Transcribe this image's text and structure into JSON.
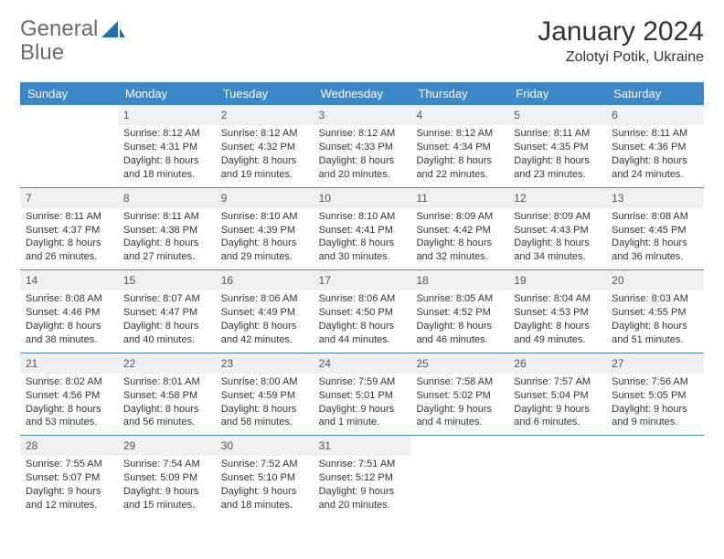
{
  "brand": {
    "part1": "General",
    "part2": "Blue",
    "text_color": "#6b6b6b",
    "accent": "#1f6fb2"
  },
  "title": "January 2024",
  "location": "Zolotyi Potik, Ukraine",
  "colors": {
    "header_bg": "#3b87c8",
    "header_text": "#ffffff",
    "daynum_bg": "#eef0f2",
    "daynum_text": "#555555",
    "rule": "#3b87c8",
    "body_text": "#333333",
    "page_bg": "#ffffff"
  },
  "fonts": {
    "title_size": 30,
    "location_size": 16,
    "dayhead_size": 13,
    "daynum_size": 12,
    "body_size": 11
  },
  "day_names": [
    "Sunday",
    "Monday",
    "Tuesday",
    "Wednesday",
    "Thursday",
    "Friday",
    "Saturday"
  ],
  "weeks": [
    [
      null,
      {
        "n": "1",
        "sunrise": "Sunrise: 8:12 AM",
        "sunset": "Sunset: 4:31 PM",
        "daylight": "Daylight: 8 hours and 18 minutes."
      },
      {
        "n": "2",
        "sunrise": "Sunrise: 8:12 AM",
        "sunset": "Sunset: 4:32 PM",
        "daylight": "Daylight: 8 hours and 19 minutes."
      },
      {
        "n": "3",
        "sunrise": "Sunrise: 8:12 AM",
        "sunset": "Sunset: 4:33 PM",
        "daylight": "Daylight: 8 hours and 20 minutes."
      },
      {
        "n": "4",
        "sunrise": "Sunrise: 8:12 AM",
        "sunset": "Sunset: 4:34 PM",
        "daylight": "Daylight: 8 hours and 22 minutes."
      },
      {
        "n": "5",
        "sunrise": "Sunrise: 8:11 AM",
        "sunset": "Sunset: 4:35 PM",
        "daylight": "Daylight: 8 hours and 23 minutes."
      },
      {
        "n": "6",
        "sunrise": "Sunrise: 8:11 AM",
        "sunset": "Sunset: 4:36 PM",
        "daylight": "Daylight: 8 hours and 24 minutes."
      }
    ],
    [
      {
        "n": "7",
        "sunrise": "Sunrise: 8:11 AM",
        "sunset": "Sunset: 4:37 PM",
        "daylight": "Daylight: 8 hours and 26 minutes."
      },
      {
        "n": "8",
        "sunrise": "Sunrise: 8:11 AM",
        "sunset": "Sunset: 4:38 PM",
        "daylight": "Daylight: 8 hours and 27 minutes."
      },
      {
        "n": "9",
        "sunrise": "Sunrise: 8:10 AM",
        "sunset": "Sunset: 4:39 PM",
        "daylight": "Daylight: 8 hours and 29 minutes."
      },
      {
        "n": "10",
        "sunrise": "Sunrise: 8:10 AM",
        "sunset": "Sunset: 4:41 PM",
        "daylight": "Daylight: 8 hours and 30 minutes."
      },
      {
        "n": "11",
        "sunrise": "Sunrise: 8:09 AM",
        "sunset": "Sunset: 4:42 PM",
        "daylight": "Daylight: 8 hours and 32 minutes."
      },
      {
        "n": "12",
        "sunrise": "Sunrise: 8:09 AM",
        "sunset": "Sunset: 4:43 PM",
        "daylight": "Daylight: 8 hours and 34 minutes."
      },
      {
        "n": "13",
        "sunrise": "Sunrise: 8:08 AM",
        "sunset": "Sunset: 4:45 PM",
        "daylight": "Daylight: 8 hours and 36 minutes."
      }
    ],
    [
      {
        "n": "14",
        "sunrise": "Sunrise: 8:08 AM",
        "sunset": "Sunset: 4:46 PM",
        "daylight": "Daylight: 8 hours and 38 minutes."
      },
      {
        "n": "15",
        "sunrise": "Sunrise: 8:07 AM",
        "sunset": "Sunset: 4:47 PM",
        "daylight": "Daylight: 8 hours and 40 minutes."
      },
      {
        "n": "16",
        "sunrise": "Sunrise: 8:06 AM",
        "sunset": "Sunset: 4:49 PM",
        "daylight": "Daylight: 8 hours and 42 minutes."
      },
      {
        "n": "17",
        "sunrise": "Sunrise: 8:06 AM",
        "sunset": "Sunset: 4:50 PM",
        "daylight": "Daylight: 8 hours and 44 minutes."
      },
      {
        "n": "18",
        "sunrise": "Sunrise: 8:05 AM",
        "sunset": "Sunset: 4:52 PM",
        "daylight": "Daylight: 8 hours and 46 minutes."
      },
      {
        "n": "19",
        "sunrise": "Sunrise: 8:04 AM",
        "sunset": "Sunset: 4:53 PM",
        "daylight": "Daylight: 8 hours and 49 minutes."
      },
      {
        "n": "20",
        "sunrise": "Sunrise: 8:03 AM",
        "sunset": "Sunset: 4:55 PM",
        "daylight": "Daylight: 8 hours and 51 minutes."
      }
    ],
    [
      {
        "n": "21",
        "sunrise": "Sunrise: 8:02 AM",
        "sunset": "Sunset: 4:56 PM",
        "daylight": "Daylight: 8 hours and 53 minutes."
      },
      {
        "n": "22",
        "sunrise": "Sunrise: 8:01 AM",
        "sunset": "Sunset: 4:58 PM",
        "daylight": "Daylight: 8 hours and 56 minutes."
      },
      {
        "n": "23",
        "sunrise": "Sunrise: 8:00 AM",
        "sunset": "Sunset: 4:59 PM",
        "daylight": "Daylight: 8 hours and 58 minutes."
      },
      {
        "n": "24",
        "sunrise": "Sunrise: 7:59 AM",
        "sunset": "Sunset: 5:01 PM",
        "daylight": "Daylight: 9 hours and 1 minute."
      },
      {
        "n": "25",
        "sunrise": "Sunrise: 7:58 AM",
        "sunset": "Sunset: 5:02 PM",
        "daylight": "Daylight: 9 hours and 4 minutes."
      },
      {
        "n": "26",
        "sunrise": "Sunrise: 7:57 AM",
        "sunset": "Sunset: 5:04 PM",
        "daylight": "Daylight: 9 hours and 6 minutes."
      },
      {
        "n": "27",
        "sunrise": "Sunrise: 7:56 AM",
        "sunset": "Sunset: 5:05 PM",
        "daylight": "Daylight: 9 hours and 9 minutes."
      }
    ],
    [
      {
        "n": "28",
        "sunrise": "Sunrise: 7:55 AM",
        "sunset": "Sunset: 5:07 PM",
        "daylight": "Daylight: 9 hours and 12 minutes."
      },
      {
        "n": "29",
        "sunrise": "Sunrise: 7:54 AM",
        "sunset": "Sunset: 5:09 PM",
        "daylight": "Daylight: 9 hours and 15 minutes."
      },
      {
        "n": "30",
        "sunrise": "Sunrise: 7:52 AM",
        "sunset": "Sunset: 5:10 PM",
        "daylight": "Daylight: 9 hours and 18 minutes."
      },
      {
        "n": "31",
        "sunrise": "Sunrise: 7:51 AM",
        "sunset": "Sunset: 5:12 PM",
        "daylight": "Daylight: 9 hours and 20 minutes."
      },
      null,
      null,
      null
    ]
  ]
}
